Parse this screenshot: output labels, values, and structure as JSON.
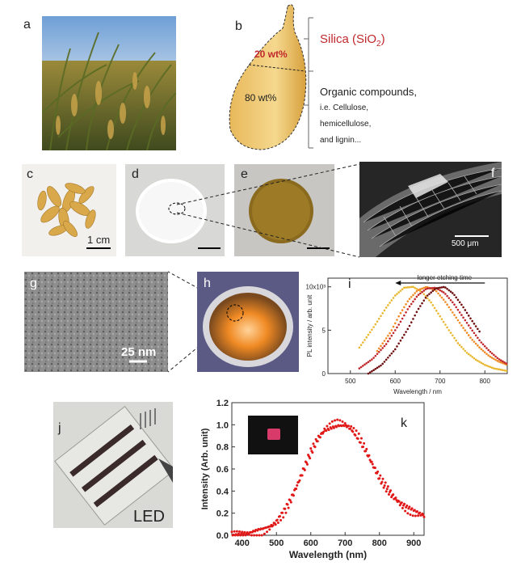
{
  "panels": {
    "a": "a",
    "b": "b",
    "c": "c",
    "d": "d",
    "e": "e",
    "f": "f",
    "g": "g",
    "h": "h",
    "i": "i",
    "j": "j",
    "k": "k"
  },
  "husk": {
    "silica_label": "Silica (SiO",
    "silica_sub": "2",
    "silica_close": ")",
    "silica_pct": "20 wt%",
    "organic_pct": "80 wt%",
    "organic_lines": [
      "Organic compounds,",
      "i.e. Cellulose,",
      "hemicellulose,",
      "and lignin..."
    ]
  },
  "scalebars": {
    "c": "1 cm",
    "f": "500 μm",
    "g": "25 nm"
  },
  "led_label": "LED",
  "colors": {
    "silica_red": "#c0282c",
    "orange": "#f08a24",
    "yellow": "#e8b830",
    "dark_red": "#8b1010",
    "k_red": "#e01818"
  },
  "chart_data": [
    {
      "type": "scatter",
      "panel": "i",
      "annotation": "longer etching time",
      "xlabel": "Wavelength / nm",
      "ylabel": "PL intensity / arb. unit",
      "xlim": [
        450,
        850
      ],
      "ylim": [
        0,
        11000
      ],
      "x_ticks": [
        "500",
        "600",
        "700",
        "800"
      ],
      "y_ticks": [
        "0",
        "5",
        "10x10³"
      ],
      "series": [
        {
          "color": "#e8b830",
          "x": [
            520,
            550,
            580,
            600,
            620,
            640,
            660,
            680,
            700,
            720,
            740,
            760,
            780,
            800,
            820,
            840,
            850
          ],
          "y": [
            3000,
            5200,
            7600,
            9000,
            9900,
            10000,
            9400,
            8200,
            6600,
            5000,
            3500,
            2400,
            1600,
            1000,
            600,
            400,
            300
          ]
        },
        {
          "color": "#f08a24",
          "x": [
            560,
            590,
            610,
            630,
            650,
            670,
            690,
            710,
            730,
            750,
            770,
            790,
            810,
            830,
            850
          ],
          "y": [
            2600,
            4800,
            6800,
            8500,
            9600,
            10000,
            9600,
            8400,
            6900,
            5400,
            4000,
            2900,
            2000,
            1400,
            1000
          ]
        },
        {
          "color": "#c0282c",
          "x": [
            520,
            550,
            580,
            610,
            630,
            650,
            670,
            690,
            710,
            730,
            750,
            770,
            790,
            810,
            830,
            850
          ],
          "y": [
            600,
            1700,
            3400,
            5800,
            7600,
            9000,
            9800,
            9900,
            9300,
            8100,
            6600,
            5100,
            3700,
            2600,
            1700,
            1100
          ]
        },
        {
          "color": "#6e1010",
          "x": [
            540,
            570,
            600,
            630,
            650,
            670,
            690,
            710,
            730,
            750,
            770,
            790
          ],
          "y": [
            0,
            1000,
            2800,
            5300,
            7300,
            8900,
            9800,
            10000,
            9200,
            7800,
            6200,
            4700
          ]
        }
      ]
    },
    {
      "type": "scatter",
      "panel": "k",
      "xlabel": "Wavelength (nm)",
      "ylabel": "Intensity (Arb. unit)",
      "xlim": [
        370,
        930
      ],
      "ylim": [
        0,
        1.2
      ],
      "x_ticks": [
        "400",
        "500",
        "600",
        "700",
        "800",
        "900"
      ],
      "y_ticks": [
        "0.0",
        "0.2",
        "0.4",
        "0.6",
        "0.8",
        "1.0",
        "1.2"
      ],
      "series": [
        {
          "color": "#e01818",
          "x": [
            370,
            400,
            430,
            460,
            480,
            500,
            520,
            540,
            560,
            580,
            600,
            620,
            640,
            660,
            680,
            700,
            720,
            740,
            760,
            780,
            800,
            820,
            840,
            860,
            880,
            900,
            930
          ],
          "y": [
            0.0,
            0.01,
            0.02,
            0.04,
            0.07,
            0.12,
            0.2,
            0.31,
            0.45,
            0.6,
            0.75,
            0.87,
            0.95,
            0.99,
            1.01,
            1.0,
            0.96,
            0.88,
            0.77,
            0.64,
            0.52,
            0.43,
            0.35,
            0.29,
            0.24,
            0.21,
            0.18
          ]
        }
      ]
    }
  ]
}
